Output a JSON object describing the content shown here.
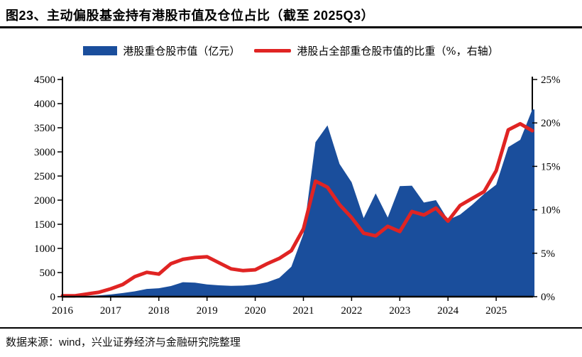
{
  "header": {
    "title": "图23、主动偏股基金持有港股市值及仓位占比（截至 2025Q3）"
  },
  "legend": {
    "items": [
      {
        "label": "港股重仓股市值（亿元）",
        "swatch": "area",
        "color": "#1A4E9C"
      },
      {
        "label": "港股占全部重仓股市值的比重（%，右轴）",
        "swatch": "line",
        "color": "#E02423"
      }
    ]
  },
  "colors": {
    "area_blue": "#1A4E9C",
    "line_red": "#E02423",
    "axis_black": "#000000"
  },
  "chart_data": {
    "type": "combo",
    "x": [
      "2016Q1",
      "2016Q2",
      "2016Q3",
      "2016Q4",
      "2017Q1",
      "2017Q2",
      "2017Q3",
      "2017Q4",
      "2018Q1",
      "2018Q2",
      "2018Q3",
      "2018Q4",
      "2019Q1",
      "2019Q2",
      "2019Q3",
      "2019Q4",
      "2020Q1",
      "2020Q2",
      "2020Q3",
      "2020Q4",
      "2021Q1",
      "2021Q2",
      "2021Q3",
      "2021Q4",
      "2022Q1",
      "2022Q2",
      "2022Q3",
      "2022Q4",
      "2023Q1",
      "2023Q2",
      "2023Q3",
      "2023Q4",
      "2024Q1",
      "2024Q2",
      "2024Q3",
      "2024Q4",
      "2025Q1",
      "2025Q2",
      "2025Q3"
    ],
    "series": [
      {
        "name": "港股重仓股市值（亿元）",
        "type": "area",
        "axis": "left",
        "color": "#1A4E9C",
        "values": [
          5,
          12,
          25,
          45,
          75,
          110,
          160,
          175,
          220,
          300,
          290,
          255,
          235,
          225,
          230,
          250,
          300,
          390,
          620,
          1300,
          3200,
          3550,
          2750,
          2370,
          1630,
          2140,
          1640,
          2290,
          2300,
          1950,
          2000,
          1590,
          1700,
          1900,
          2130,
          2320,
          3100,
          3250,
          3880
        ]
      },
      {
        "name": "港股占全部重仓股市值的比重（%，右轴）",
        "type": "line",
        "axis": "right",
        "color": "#E02423",
        "values": [
          0.1,
          0.3,
          0.5,
          0.9,
          1.4,
          2.3,
          2.8,
          2.6,
          3.8,
          4.3,
          4.5,
          4.6,
          3.9,
          3.2,
          3.0,
          3.1,
          3.8,
          4.4,
          5.3,
          7.8,
          13.3,
          12.6,
          10.6,
          9.1,
          7.3,
          7.0,
          8.1,
          7.5,
          9.8,
          9.4,
          10.2,
          8.7,
          10.5,
          11.3,
          12.1,
          14.5,
          19.2,
          19.9,
          19.1
        ]
      }
    ],
    "left_axis": {
      "min": 0,
      "max": 4500,
      "step": 500,
      "labels": [
        "0",
        "500",
        "1000",
        "1500",
        "2000",
        "2500",
        "3000",
        "3500",
        "4000",
        "4500"
      ]
    },
    "right_axis": {
      "min": 0,
      "max": 25,
      "step": 5,
      "labels": [
        "0%",
        "5%",
        "10%",
        "15%",
        "20%",
        "25%"
      ]
    },
    "x_axis": {
      "year_labels": [
        "2016",
        "2017",
        "2018",
        "2019",
        "2020",
        "2021",
        "2022",
        "2023",
        "2024",
        "2025"
      ]
    },
    "grid": false,
    "legend_position": "top",
    "title": "主动偏股基金持有港股市值及仓位占比",
    "xlabel": "",
    "ylabel_left": "亿元",
    "ylabel_right": "%"
  },
  "footer": {
    "source_text": "数据来源：wind，兴业证券经济与金融研究院整理"
  }
}
